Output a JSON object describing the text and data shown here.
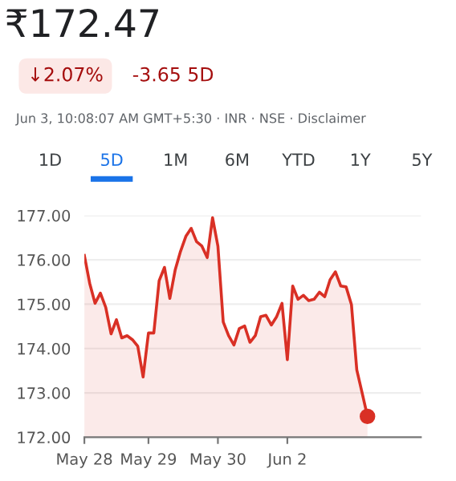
{
  "chart_data": {
    "type": "area",
    "title": "₹172.47",
    "annotations": [
      "↓2.07%",
      "-3.65 5D",
      "Jun 3, 10:08:07 AM GMT+5:30 · INR · NSE · Disclaimer",
      "1D",
      "5D",
      "1M",
      "6M",
      "YTD",
      "1Y",
      "5Y"
    ],
    "categories": [
      "May 28",
      null,
      null,
      null,
      null,
      null,
      null,
      null,
      null,
      null,
      null,
      null,
      "May 29",
      null,
      null,
      null,
      null,
      null,
      null,
      null,
      null,
      null,
      null,
      null,
      null,
      "May 30",
      null,
      null,
      null,
      null,
      null,
      null,
      null,
      null,
      null,
      null,
      null,
      null,
      "Jun 2",
      null,
      null,
      null,
      null,
      null,
      null,
      null,
      null,
      null,
      null,
      null,
      null,
      null,
      null,
      null,
      null,
      null,
      null,
      null,
      null,
      null,
      null,
      null,
      null,
      null
    ],
    "ylim": [
      172,
      177
    ],
    "yticks": [
      {
        "value": 172,
        "label": "172.00"
      },
      {
        "value": 173,
        "label": "173.00"
      },
      {
        "value": 174,
        "label": "174.00"
      },
      {
        "value": 175,
        "label": "175.00"
      },
      {
        "value": 176,
        "label": "176.00"
      },
      {
        "value": 177,
        "label": "177.00"
      }
    ],
    "grid": "y",
    "series": [
      {
        "color": "#d93025",
        "marker": "none",
        "values": [
          176.1,
          175.47,
          175.02,
          175.25,
          174.93,
          174.33,
          174.65,
          174.24,
          174.29,
          174.2,
          174.05,
          173.36,
          174.35,
          174.35,
          175.53,
          175.83,
          175.13,
          175.77,
          176.19,
          176.53,
          176.71,
          176.41,
          176.31,
          176.05,
          176.95,
          176.31,
          174.6,
          174.29,
          174.08,
          174.45,
          174.51,
          174.14,
          174.29,
          174.72,
          174.75,
          174.53,
          174.72,
          175.02,
          173.75,
          175.41,
          175.11,
          175.2,
          175.08,
          175.11,
          175.27,
          175.17,
          175.55,
          175.73,
          175.41,
          175.39,
          174.99,
          173.52,
          173.0,
          172.47,
          null,
          null,
          null,
          null,
          null,
          null,
          null,
          null,
          null,
          null
        ]
      },
      {
        "type": "scatter",
        "color": "#d93025",
        "marker": "circle",
        "values": [
          null,
          null,
          null,
          null,
          null,
          null,
          null,
          null,
          null,
          null,
          null,
          null,
          null,
          null,
          null,
          null,
          null,
          null,
          null,
          null,
          null,
          null,
          null,
          null,
          null,
          null,
          null,
          null,
          null,
          null,
          null,
          null,
          null,
          null,
          null,
          null,
          null,
          null,
          null,
          null,
          null,
          null,
          null,
          null,
          null,
          null,
          null,
          null,
          null,
          null,
          null,
          null,
          null,
          172.47,
          null,
          null,
          null,
          null,
          null,
          null,
          null,
          null,
          null,
          null
        ]
      }
    ]
  }
}
